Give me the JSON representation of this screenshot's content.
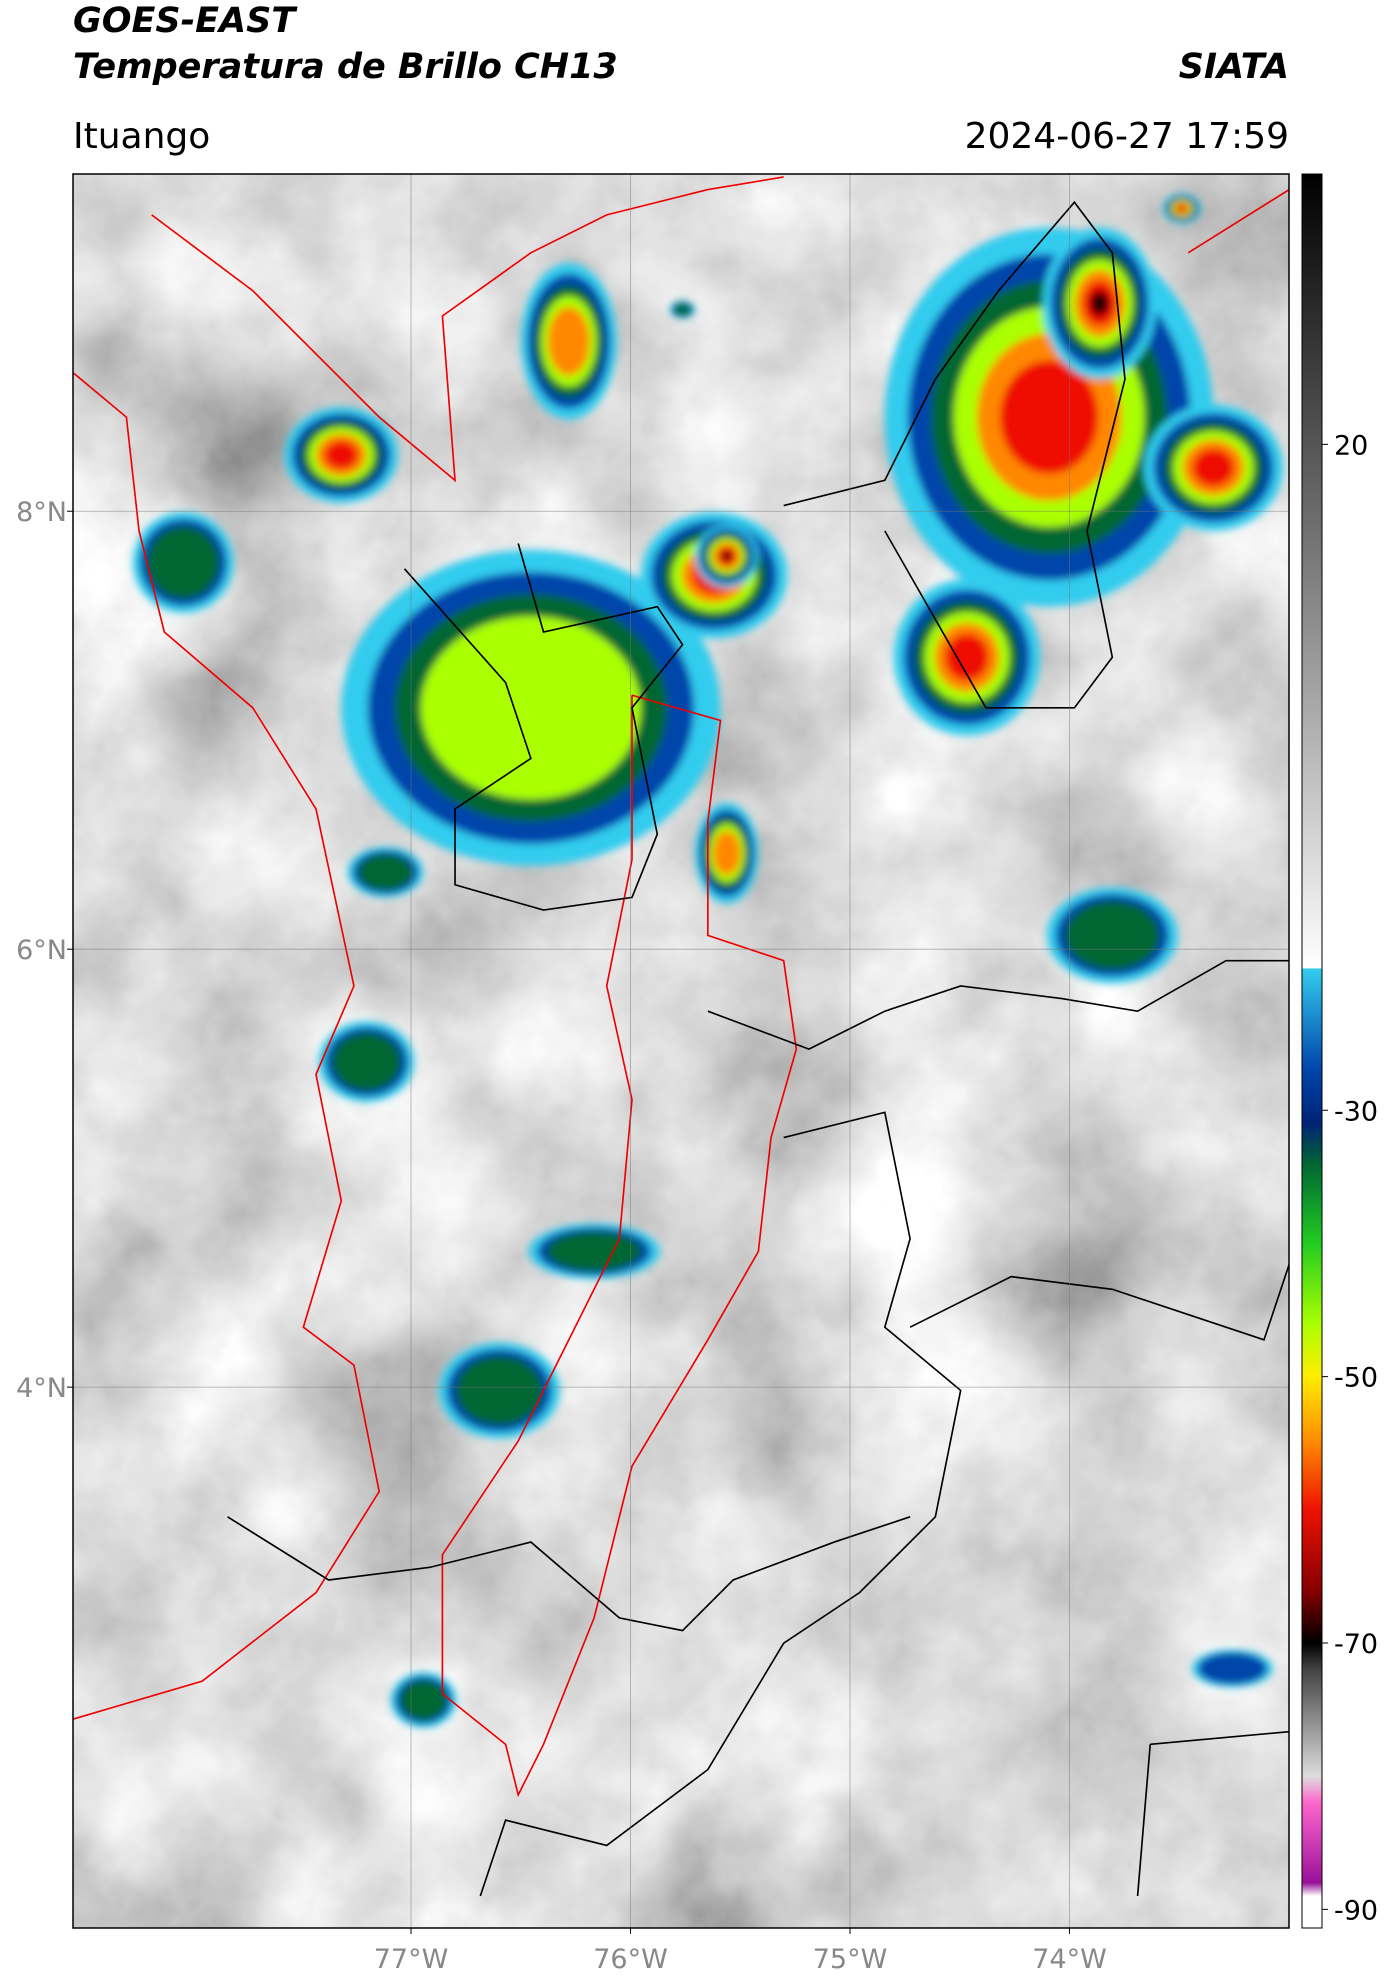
{
  "header": {
    "title": "GOES-EAST",
    "subtitle": "Temperatura de Brillo CH13",
    "source": "SIATA",
    "location": "Ituango",
    "datetime": "2024-06-27 17:59"
  },
  "map": {
    "lon_lim": [
      -78.54,
      -73.0
    ],
    "lat_lim": [
      1.53,
      9.54
    ],
    "lon_ticks": [
      {
        "value": -77,
        "label": "77°W"
      },
      {
        "value": -76,
        "label": "76°W"
      },
      {
        "value": -75,
        "label": "75°W"
      },
      {
        "value": -74,
        "label": "74°W"
      }
    ],
    "lat_ticks": [
      {
        "value": 4,
        "label": "4°N"
      },
      {
        "value": 6,
        "label": "6°N"
      },
      {
        "value": 8,
        "label": "8°N"
      }
    ],
    "grid": true
  },
  "colorbar": {
    "lim": [
      -91.4,
      40.3
    ],
    "ticks": [
      -90,
      -70,
      -50,
      -30,
      20
    ],
    "colormap": [
      {
        "value": 40.3,
        "color": "#000000"
      },
      {
        "value": 20,
        "color": "#555555"
      },
      {
        "value": 0,
        "color": "#aaaaaa"
      },
      {
        "value": -19.3,
        "color": "#ffffff"
      },
      {
        "value": -19.4,
        "color": "#33ccee"
      },
      {
        "value": -27,
        "color": "#0044aa"
      },
      {
        "value": -31,
        "color": "#002277"
      },
      {
        "value": -34,
        "color": "#006633"
      },
      {
        "value": -40,
        "color": "#22cc22"
      },
      {
        "value": -46,
        "color": "#aaff00"
      },
      {
        "value": -50,
        "color": "#ffee00"
      },
      {
        "value": -55,
        "color": "#ff8800"
      },
      {
        "value": -60,
        "color": "#ee1100"
      },
      {
        "value": -66,
        "color": "#880000"
      },
      {
        "value": -70,
        "color": "#000000"
      },
      {
        "value": -72,
        "color": "#444444"
      },
      {
        "value": -80,
        "color": "#dddddd"
      },
      {
        "value": -82,
        "color": "#ff66cc"
      },
      {
        "value": -88,
        "color": "#991199"
      },
      {
        "value": -89,
        "color": "#ffffff"
      },
      {
        "value": -91.4,
        "color": "#ffffff"
      }
    ]
  }
}
